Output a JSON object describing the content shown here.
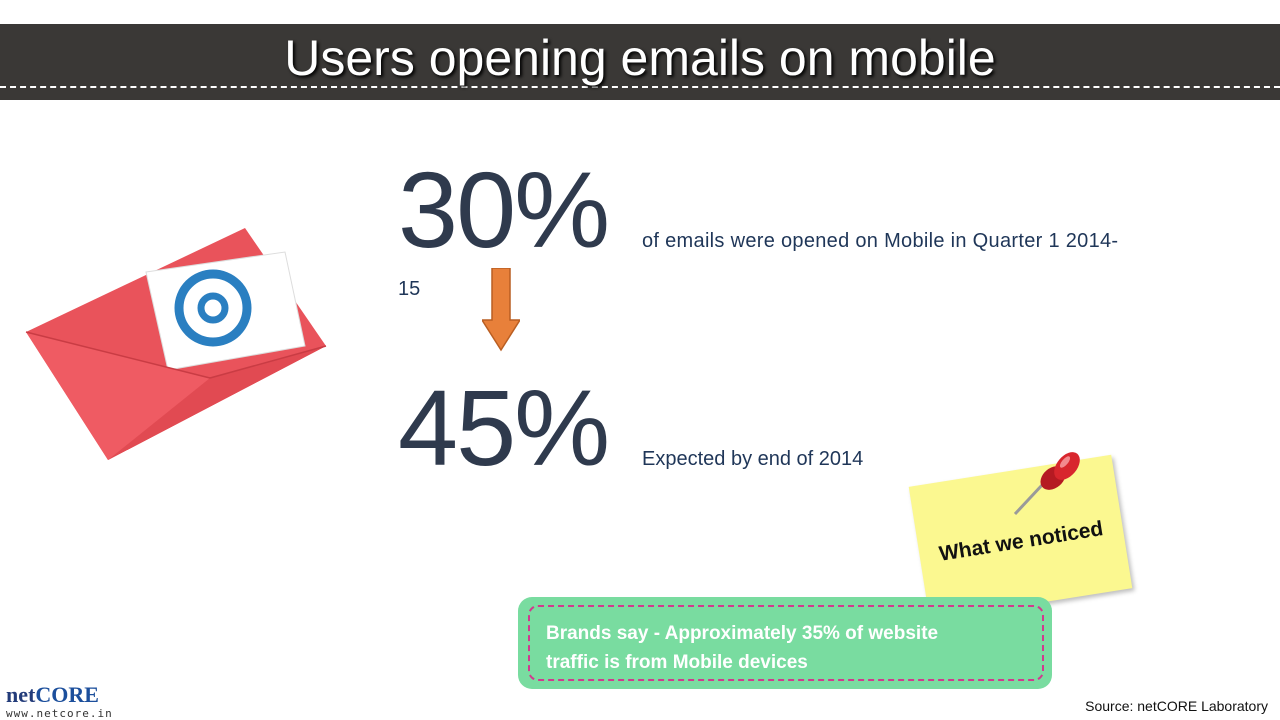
{
  "header": {
    "title": "Users opening emails on mobile"
  },
  "stats": [
    {
      "value": "30%",
      "line1": "of emails were opened on Mobile in Quarter 1 2014-",
      "line2": "15"
    },
    {
      "value": "45%",
      "description": "Expected by end of 2014"
    }
  ],
  "note": {
    "text": "What we noticed"
  },
  "callout": {
    "line1": "Brands say -  Approximately 35% of website",
    "line2": "traffic is from Mobile devices"
  },
  "footer": {
    "logo_prefix": "net",
    "logo_main": "CORE",
    "logo_url": "www.netcore.in",
    "source": "Source: netCORE Laboratory"
  },
  "colors": {
    "title_bar": "#3a3836",
    "stat_text": "#2f3a4d",
    "arrow": "#e8803a",
    "note": "#fbf890",
    "pin": "#d8262d",
    "callout_bg": "#79dca0",
    "callout_border": "#d2398f",
    "envelope": "#e9535b"
  },
  "icons": [
    "email-envelope-icon",
    "down-arrow-icon",
    "push-pin-icon"
  ]
}
